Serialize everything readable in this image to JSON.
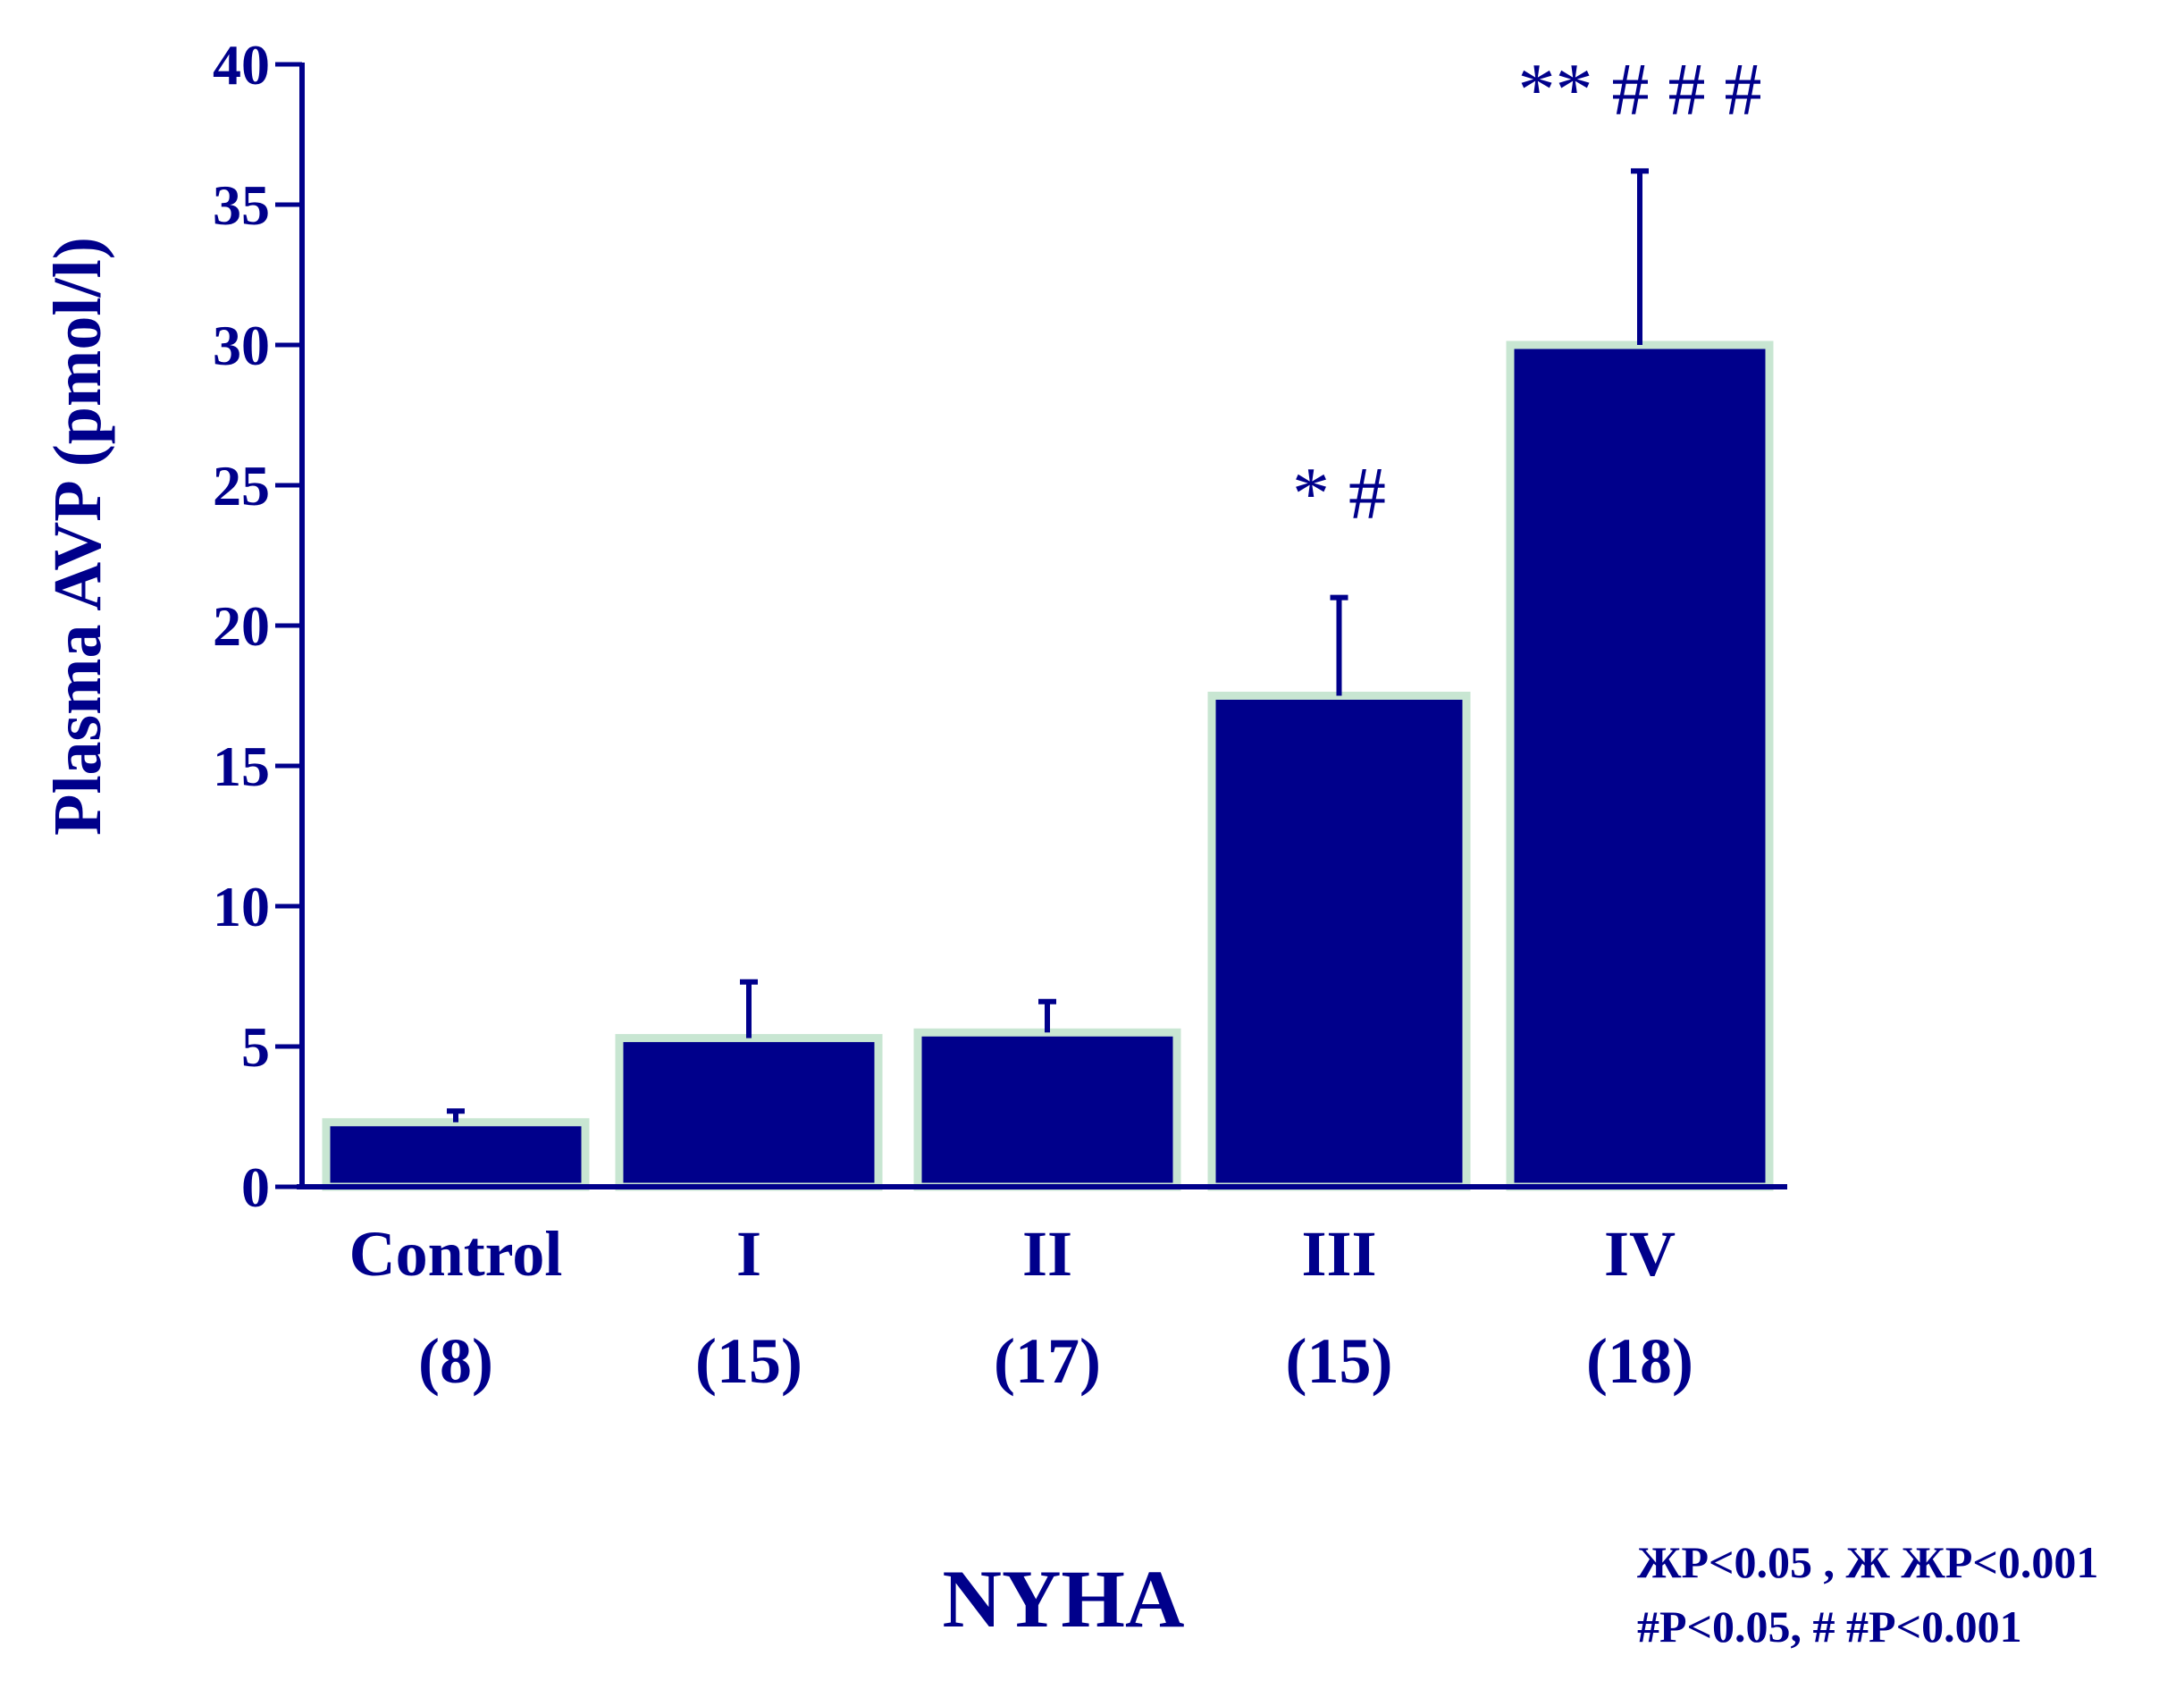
{
  "chart_data": {
    "type": "bar",
    "title": "",
    "ylabel": "Plasma AVP (pmol/l)",
    "xlabel": "NYHA",
    "ylim": [
      0,
      40
    ],
    "yticks": [
      "0",
      "5",
      "10",
      "15",
      "20",
      "25",
      "30",
      "35",
      "40"
    ],
    "grid": false,
    "categories": [
      "Control",
      "I",
      "II",
      "III",
      "IV"
    ],
    "group_sizes": [
      "(8)",
      "(15)",
      "(17)",
      "(15)",
      "(18)"
    ],
    "values": [
      2.3,
      5.3,
      5.5,
      17.5,
      30.0
    ],
    "error_upper": [
      2.7,
      7.3,
      6.6,
      21.0,
      36.2
    ],
    "annotations": [
      "",
      "",
      "",
      "* #",
      "** # # #"
    ],
    "legend": [
      "ЖP<0.05 , Ж ЖP<0.001",
      "#P<0.05, # #P<0.001"
    ]
  },
  "colors": {
    "bar": "#00008b",
    "bar_outline": "#c8e6d2",
    "axis": "#00008b",
    "text": "#00008b"
  }
}
